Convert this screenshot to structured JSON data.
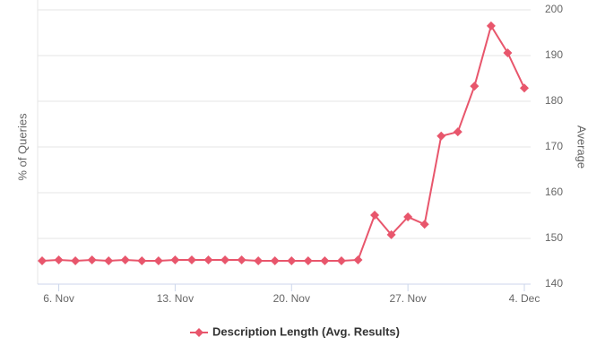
{
  "chart_data": {
    "type": "line",
    "y_label": "% of Queries",
    "y2_label": "Average",
    "categories": [
      null,
      "6. Nov",
      null,
      null,
      null,
      null,
      null,
      null,
      "13. Nov",
      null,
      null,
      null,
      null,
      null,
      null,
      "20. Nov",
      null,
      null,
      null,
      null,
      null,
      null,
      "27. Nov",
      null,
      null,
      null,
      null,
      null,
      null,
      "4. Dec"
    ],
    "series": [
      {
        "name": "Description Length (Avg. Results)",
        "color": "#e8566c",
        "axis": "y2",
        "values": [
          145.1,
          145.3,
          145.1,
          145.3,
          145.1,
          145.3,
          145.1,
          145.1,
          145.3,
          145.3,
          145.3,
          145.3,
          145.3,
          145.1,
          145.1,
          145.1,
          145.1,
          145.1,
          145.1,
          145.3,
          155.1,
          150.8,
          154.7,
          153.1,
          172.4,
          173.3,
          183.3,
          196.5,
          190.6,
          182.9
        ]
      }
    ],
    "y2lim": [
      140,
      200
    ],
    "y2ticks": [
      140,
      150,
      160,
      170,
      180,
      190,
      200
    ],
    "grid": true
  }
}
